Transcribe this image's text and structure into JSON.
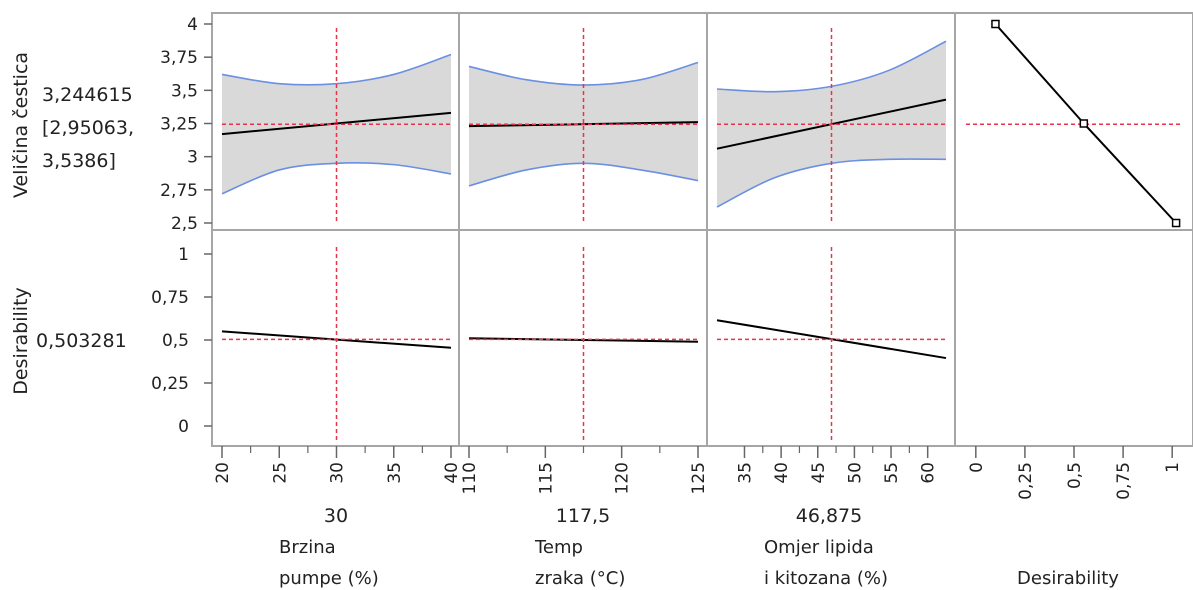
{
  "chart_data": {
    "type": "line",
    "title": "",
    "response": {
      "label": "Veličina čestica",
      "current_value": "3,244615",
      "ci_line1": "[2,95063,",
      "ci_line2": "3,5386]",
      "ylim": [
        2.5,
        4.0
      ],
      "yticks": [
        "2,5",
        "2,75",
        "3",
        "3,25",
        "3,5",
        "3,75",
        "4"
      ]
    },
    "desirability": {
      "label": "Desirability",
      "current_value": "0,503281",
      "ylim": [
        0,
        1
      ],
      "yticks": [
        "0",
        "0,25",
        "0,5",
        "0,75",
        "1"
      ]
    },
    "factors": [
      {
        "name_line1": "Brzina",
        "name_line2": "pumpe (%)",
        "current": 30,
        "current_label": "30",
        "xlim": [
          20,
          40
        ],
        "ticks": [
          20,
          25,
          30,
          35,
          40
        ],
        "tick_labels": [
          "20",
          "25",
          "30",
          "35",
          "40"
        ],
        "x": [
          20,
          40
        ],
        "prediction": [
          3.17,
          3.33
        ],
        "ci_x": [
          20,
          25,
          30,
          35,
          40
        ],
        "ci_upper": [
          3.62,
          3.55,
          3.55,
          3.62,
          3.77
        ],
        "ci_lower": [
          2.72,
          2.9,
          2.95,
          2.94,
          2.87
        ],
        "desirability": [
          0.55,
          0.455
        ]
      },
      {
        "name_line1": "Temp",
        "name_line2": "zraka (°C)",
        "current": 117.5,
        "current_label": "117,5",
        "xlim": [
          110,
          125
        ],
        "ticks": [
          110,
          115,
          120,
          125
        ],
        "tick_labels": [
          "110",
          "115",
          "120",
          "125"
        ],
        "x": [
          110,
          125
        ],
        "prediction": [
          3.23,
          3.26
        ],
        "ci_x": [
          110,
          113.75,
          117.5,
          121.25,
          125
        ],
        "ci_upper": [
          3.68,
          3.58,
          3.54,
          3.58,
          3.71
        ],
        "ci_lower": [
          2.78,
          2.9,
          2.95,
          2.9,
          2.82
        ],
        "desirability": [
          0.51,
          0.49
        ]
      },
      {
        "name_line1": "Omjer lipida",
        "name_line2": "i kitozana (%)",
        "current": 46.875,
        "current_label": "46,875",
        "xlim": [
          31.25,
          62.5
        ],
        "ticks": [
          35,
          40,
          45,
          50,
          55,
          60
        ],
        "tick_labels": [
          "35",
          "40",
          "45",
          "50",
          "55",
          "60"
        ],
        "x": [
          31.25,
          62.5
        ],
        "prediction": [
          3.06,
          3.43
        ],
        "ci_x": [
          31.25,
          39.06,
          46.875,
          54.69,
          62.5
        ],
        "ci_upper": [
          3.51,
          3.49,
          3.53,
          3.65,
          3.87
        ],
        "ci_lower": [
          2.62,
          2.84,
          2.95,
          2.98,
          2.98
        ],
        "desirability": [
          0.615,
          0.395
        ]
      }
    ],
    "desirability_function": {
      "name": "Desirability",
      "xlim": [
        -0.05,
        1.05
      ],
      "ticks": [
        0,
        0.25,
        0.5,
        0.75,
        1
      ],
      "tick_labels": [
        "0",
        "0,25",
        "0,5",
        "0,75",
        "1"
      ],
      "points": [
        [
          0.1,
          4.0
        ],
        [
          0.55,
          3.25
        ],
        [
          1.02,
          2.5
        ]
      ]
    },
    "colors": {
      "prediction": "#000000",
      "ci_band": "#d9d9d9",
      "ci_line": "#6b8fe3",
      "current": "#e8334a",
      "frame": "#a6a6a6"
    }
  }
}
